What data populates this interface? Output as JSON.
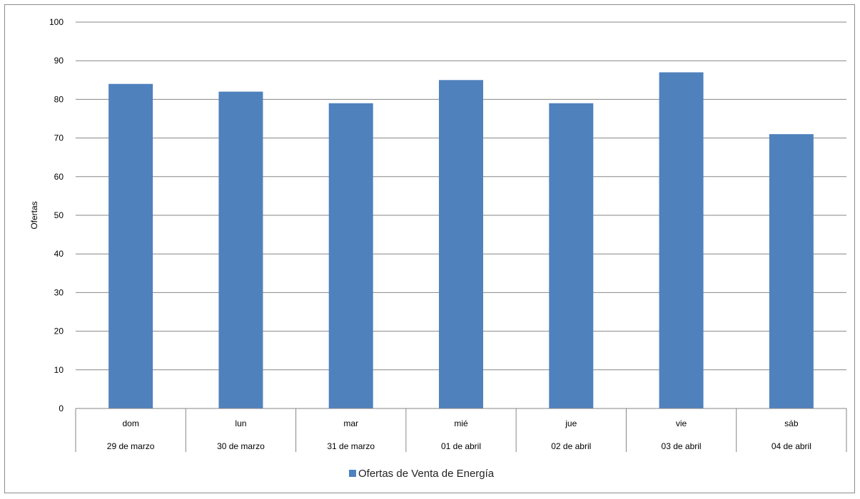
{
  "chart_data": {
    "type": "bar",
    "title": "",
    "ylabel": "Ofertas",
    "xlabel": "",
    "ylim": [
      0,
      100
    ],
    "yticks": [
      0,
      10,
      20,
      30,
      40,
      50,
      60,
      70,
      80,
      90,
      100
    ],
    "grid": true,
    "legend_position": "bottom",
    "categories": [
      {
        "day": "dom",
        "date": "29 de marzo"
      },
      {
        "day": "lun",
        "date": "30 de marzo"
      },
      {
        "day": "mar",
        "date": "31 de marzo"
      },
      {
        "day": "mié",
        "date": "01 de abril"
      },
      {
        "day": "jue",
        "date": "02 de abril"
      },
      {
        "day": "vie",
        "date": "03 de abril"
      },
      {
        "day": "sáb",
        "date": "04 de abril"
      }
    ],
    "series": [
      {
        "name": "Ofertas de Venta de Energía",
        "color": "#4f81bd",
        "values": [
          84,
          82,
          79,
          85,
          79,
          87,
          71
        ]
      }
    ]
  }
}
